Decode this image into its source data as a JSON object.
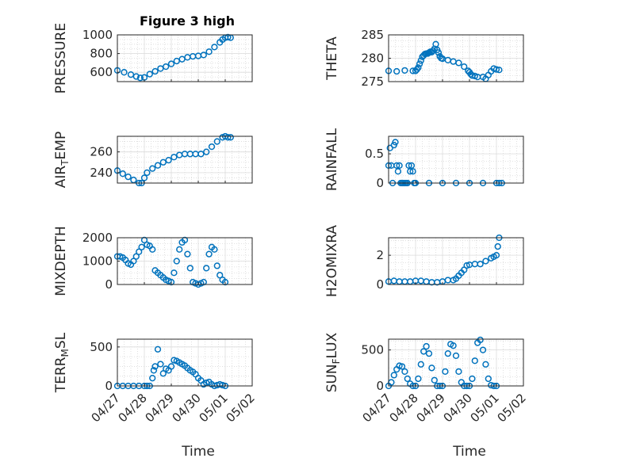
{
  "chart_data": [
    {
      "type": "scatter",
      "title": "Figure 3 high",
      "ylabel": "PRESSURE",
      "xlabel": "",
      "xticks": [
        "04/27",
        "04/28",
        "04/29",
        "04/30",
        "05/01",
        "05/02"
      ],
      "xlim": [
        0,
        5
      ],
      "ylim": [
        500,
        1000
      ],
      "yticks": [
        600,
        800,
        1000
      ],
      "grid": true,
      "color": "#0072BD",
      "x": [
        0,
        0.25,
        0.5,
        0.7,
        0.85,
        1.0,
        1.2,
        1.4,
        1.6,
        1.8,
        2.0,
        2.2,
        2.4,
        2.6,
        2.8,
        3.0,
        3.2,
        3.4,
        3.6,
        3.8,
        3.9,
        4.0,
        4.1,
        4.2
      ],
      "y": [
        620,
        600,
        575,
        555,
        540,
        545,
        580,
        610,
        640,
        660,
        690,
        720,
        740,
        760,
        770,
        775,
        785,
        820,
        870,
        920,
        950,
        970,
        975,
        970
      ]
    },
    {
      "type": "scatter",
      "title": "",
      "ylabel": "THETA",
      "xlabel": "",
      "xticks": [
        "04/27",
        "04/28",
        "04/29",
        "04/30",
        "05/01",
        "05/02"
      ],
      "xlim": [
        0,
        5
      ],
      "ylim": [
        275,
        285
      ],
      "yticks": [
        275,
        280,
        285
      ],
      "grid": true,
      "color": "#0072BD",
      "x": [
        0,
        0.3,
        0.6,
        0.9,
        1.0,
        1.05,
        1.1,
        1.15,
        1.2,
        1.25,
        1.3,
        1.35,
        1.4,
        1.45,
        1.5,
        1.55,
        1.6,
        1.65,
        1.7,
        1.75,
        1.8,
        1.85,
        1.9,
        1.95,
        2.0,
        2.2,
        2.4,
        2.6,
        2.8,
        2.95,
        3.0,
        3.05,
        3.1,
        3.2,
        3.3,
        3.5,
        3.6,
        3.7,
        3.8,
        3.9,
        4.0,
        4.1
      ],
      "y": [
        277.3,
        277.2,
        277.4,
        277.3,
        277.3,
        277.6,
        278.0,
        278.8,
        279.5,
        280.3,
        280.6,
        280.9,
        281.0,
        281.0,
        281.2,
        281.4,
        281.3,
        281.6,
        282.0,
        283.0,
        281.8,
        281.2,
        280.4,
        280.0,
        279.9,
        279.6,
        279.3,
        279.0,
        278.2,
        277.3,
        277.0,
        276.6,
        276.3,
        276.2,
        276.0,
        276.0,
        275.6,
        276.4,
        277.2,
        277.8,
        277.6,
        277.5
      ]
    },
    {
      "type": "scatter",
      "title": "",
      "ylabel": "AIR_TEMP",
      "xlabel": "",
      "xticks": [
        "04/27",
        "04/28",
        "04/29",
        "04/30",
        "05/01",
        "05/02"
      ],
      "xlim": [
        0,
        5
      ],
      "ylim": [
        230,
        275
      ],
      "yticks": [
        240,
        260
      ],
      "grid": true,
      "color": "#0072BD",
      "x": [
        0,
        0.2,
        0.4,
        0.6,
        0.8,
        0.9,
        1.0,
        1.1,
        1.3,
        1.5,
        1.7,
        1.9,
        2.1,
        2.3,
        2.5,
        2.7,
        2.9,
        3.1,
        3.3,
        3.5,
        3.7,
        3.9,
        4.0,
        4.1,
        4.2
      ],
      "y": [
        242,
        239,
        236,
        233,
        230,
        230,
        235,
        240,
        244,
        247,
        250,
        252,
        255,
        257,
        258,
        258,
        258,
        258,
        260,
        265,
        270,
        274,
        275,
        274,
        274
      ]
    },
    {
      "type": "scatter",
      "title": "",
      "ylabel": "RAINFALL",
      "xlabel": "",
      "xticks": [
        "04/27",
        "04/28",
        "04/29",
        "04/30",
        "05/01",
        "05/02"
      ],
      "xlim": [
        0,
        5
      ],
      "ylim": [
        0,
        0.8
      ],
      "yticks": [
        0,
        0.5
      ],
      "grid": true,
      "color": "#0072BD",
      "x": [
        0,
        0.05,
        0.1,
        0.15,
        0.2,
        0.25,
        0.3,
        0.35,
        0.4,
        0.45,
        0.5,
        0.55,
        0.6,
        0.65,
        0.7,
        0.75,
        0.8,
        0.85,
        0.9,
        0.95,
        1.0,
        1.5,
        2.0,
        2.5,
        3.0,
        3.5,
        4.0,
        4.1,
        4.2
      ],
      "y": [
        0.3,
        0.6,
        0.3,
        0.0,
        0.65,
        0.7,
        0.3,
        0.2,
        0.3,
        0.0,
        0.0,
        0.0,
        0.0,
        0.0,
        0.0,
        0.3,
        0.2,
        0.3,
        0.2,
        0.0,
        0.0,
        0.0,
        0.0,
        0.0,
        0.0,
        0.0,
        0.0,
        0.0,
        0.0
      ]
    },
    {
      "type": "scatter",
      "title": "",
      "ylabel": "MIXDEPTH",
      "xlabel": "",
      "xticks": [
        "04/27",
        "04/28",
        "04/29",
        "04/30",
        "05/01",
        "05/02"
      ],
      "xlim": [
        0,
        5
      ],
      "ylim": [
        0,
        2000
      ],
      "yticks": [
        0,
        1000,
        2000
      ],
      "grid": true,
      "color": "#0072BD",
      "x": [
        0,
        0.1,
        0.2,
        0.3,
        0.4,
        0.5,
        0.6,
        0.7,
        0.8,
        0.9,
        1.0,
        1.1,
        1.2,
        1.3,
        1.4,
        1.5,
        1.6,
        1.7,
        1.8,
        1.9,
        2.0,
        2.1,
        2.2,
        2.3,
        2.4,
        2.5,
        2.6,
        2.7,
        2.8,
        2.9,
        3.0,
        3.1,
        3.2,
        3.3,
        3.4,
        3.5,
        3.6,
        3.7,
        3.8,
        3.9,
        4.0
      ],
      "y": [
        1200,
        1200,
        1150,
        1050,
        900,
        850,
        1000,
        1200,
        1400,
        1600,
        1900,
        1700,
        1650,
        1500,
        600,
        500,
        400,
        300,
        200,
        150,
        100,
        500,
        1000,
        1500,
        1800,
        1900,
        1300,
        700,
        100,
        50,
        0,
        50,
        100,
        700,
        1300,
        1600,
        1500,
        800,
        400,
        200,
        100
      ]
    },
    {
      "type": "scatter",
      "title": "",
      "ylabel": "H2OMIXRA",
      "xlabel": "",
      "xticks": [
        "04/27",
        "04/28",
        "04/29",
        "04/30",
        "05/01",
        "05/02"
      ],
      "xlim": [
        0,
        5
      ],
      "ylim": [
        0,
        3.2
      ],
      "yticks": [
        0,
        2
      ],
      "grid": true,
      "color": "#0072BD",
      "x": [
        0,
        0.2,
        0.4,
        0.6,
        0.8,
        1.0,
        1.2,
        1.4,
        1.6,
        1.8,
        2.0,
        2.2,
        2.4,
        2.5,
        2.6,
        2.7,
        2.8,
        2.9,
        3.0,
        3.2,
        3.4,
        3.6,
        3.8,
        3.9,
        4.0,
        4.05,
        4.1
      ],
      "y": [
        0.2,
        0.25,
        0.2,
        0.2,
        0.2,
        0.25,
        0.25,
        0.2,
        0.15,
        0.15,
        0.2,
        0.3,
        0.3,
        0.4,
        0.6,
        0.8,
        1.0,
        1.3,
        1.35,
        1.4,
        1.4,
        1.6,
        1.8,
        1.9,
        2.0,
        2.6,
        3.2
      ]
    },
    {
      "type": "scatter",
      "title": "",
      "ylabel": "TERR_MSL",
      "xlabel": "Time",
      "xticks": [
        "04/27",
        "04/28",
        "04/29",
        "04/30",
        "05/01",
        "05/02"
      ],
      "xlim": [
        0,
        5
      ],
      "ylim": [
        0,
        600
      ],
      "yticks": [
        0,
        500
      ],
      "grid": true,
      "color": "#0072BD",
      "x": [
        0,
        0.2,
        0.4,
        0.6,
        0.8,
        1.0,
        1.1,
        1.2,
        1.3,
        1.35,
        1.4,
        1.5,
        1.6,
        1.7,
        1.8,
        1.9,
        2.0,
        2.1,
        2.2,
        2.3,
        2.4,
        2.5,
        2.6,
        2.7,
        2.8,
        2.9,
        3.0,
        3.1,
        3.2,
        3.3,
        3.4,
        3.5,
        3.6,
        3.7,
        3.8,
        3.9,
        4.0
      ],
      "y": [
        0,
        0,
        0,
        0,
        0,
        0,
        0,
        0,
        100,
        200,
        250,
        470,
        280,
        160,
        220,
        200,
        250,
        330,
        320,
        300,
        280,
        260,
        230,
        200,
        180,
        150,
        100,
        70,
        20,
        40,
        50,
        20,
        0,
        10,
        20,
        10,
        0
      ]
    },
    {
      "type": "scatter",
      "title": "",
      "ylabel": "SUN_FLUX",
      "xlabel": "Time",
      "xticks": [
        "04/27",
        "04/28",
        "04/29",
        "04/30",
        "05/01",
        "05/02"
      ],
      "xlim": [
        0,
        5
      ],
      "ylim": [
        0,
        650
      ],
      "yticks": [
        0,
        500
      ],
      "grid": true,
      "color": "#0072BD",
      "x": [
        0,
        0.1,
        0.2,
        0.3,
        0.4,
        0.5,
        0.6,
        0.7,
        0.8,
        0.9,
        1.0,
        1.1,
        1.2,
        1.3,
        1.4,
        1.5,
        1.6,
        1.7,
        1.8,
        1.9,
        2.0,
        2.1,
        2.2,
        2.3,
        2.4,
        2.5,
        2.6,
        2.7,
        2.8,
        2.9,
        3.0,
        3.1,
        3.2,
        3.3,
        3.4,
        3.5,
        3.6,
        3.7,
        3.8,
        3.9,
        4.0
      ],
      "y": [
        0,
        50,
        150,
        230,
        280,
        270,
        200,
        100,
        30,
        0,
        0,
        100,
        300,
        480,
        550,
        450,
        250,
        80,
        0,
        0,
        0,
        200,
        450,
        580,
        560,
        420,
        200,
        50,
        0,
        0,
        0,
        100,
        350,
        600,
        640,
        500,
        300,
        100,
        10,
        0,
        0
      ]
    }
  ]
}
